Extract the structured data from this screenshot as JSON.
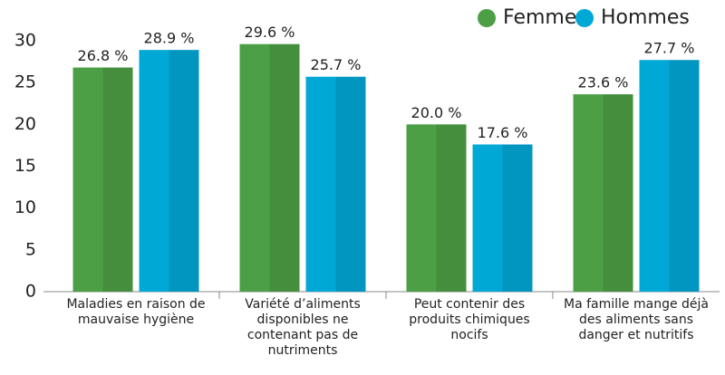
{
  "chart_data": {
    "type": "bar",
    "categories": [
      "Maladies en raison de mauvaise hygiène",
      "Variété d’aliments disponibles ne contenant pas de nutriments",
      "Peut contenir des produits chimiques nocifs",
      "Ma famille mange déjà des aliments sans danger et nutritifs"
    ],
    "series": [
      {
        "name": "Femmes",
        "color": "#4c9f45",
        "values": [
          26.8,
          29.6,
          20.0,
          23.6
        ],
        "value_labels": [
          "26.8 %",
          "29.6 %",
          "20.0 %",
          "23.6 %"
        ]
      },
      {
        "name": "Hommes",
        "color": "#00a8d6",
        "values": [
          28.9,
          25.7,
          17.6,
          27.7
        ],
        "value_labels": [
          "28.9 %",
          "25.7 %",
          "17.6 %",
          "27.7 %"
        ]
      }
    ],
    "ylim": [
      0,
      30
    ],
    "yticks": [
      0,
      5,
      10,
      15,
      20,
      25,
      30
    ],
    "legend": "top-right"
  }
}
